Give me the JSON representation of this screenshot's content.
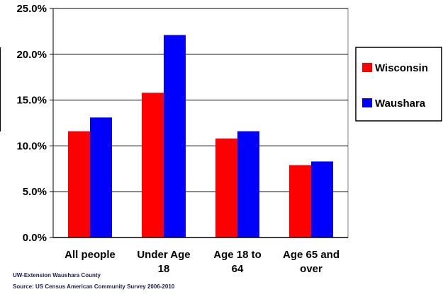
{
  "chart_data": {
    "type": "bar",
    "categories": [
      [
        "All people"
      ],
      [
        "Under Age",
        "18"
      ],
      [
        "Age 18 to",
        "64"
      ],
      [
        "Age 65 and",
        "over"
      ]
    ],
    "series": [
      {
        "name": "Wisconsin",
        "color": "#ff0000",
        "values": [
          11.6,
          15.8,
          10.8,
          7.9
        ]
      },
      {
        "name": "Waushara",
        "color": "#0000ff",
        "values": [
          13.1,
          22.1,
          11.6,
          8.3
        ]
      }
    ],
    "ylim": [
      0,
      25
    ],
    "yticks": [
      "0.0%",
      "5.0%",
      "10.0%",
      "15.0%",
      "20.0%",
      "25.0%"
    ],
    "ytick_values": [
      0,
      5,
      10,
      15,
      20,
      25
    ],
    "grid": true,
    "legend_position": "right"
  },
  "footnotes": {
    "line1": "UW-Extension Waushara County",
    "line2": "Source: US Census American Community Survey 2006-2010"
  }
}
